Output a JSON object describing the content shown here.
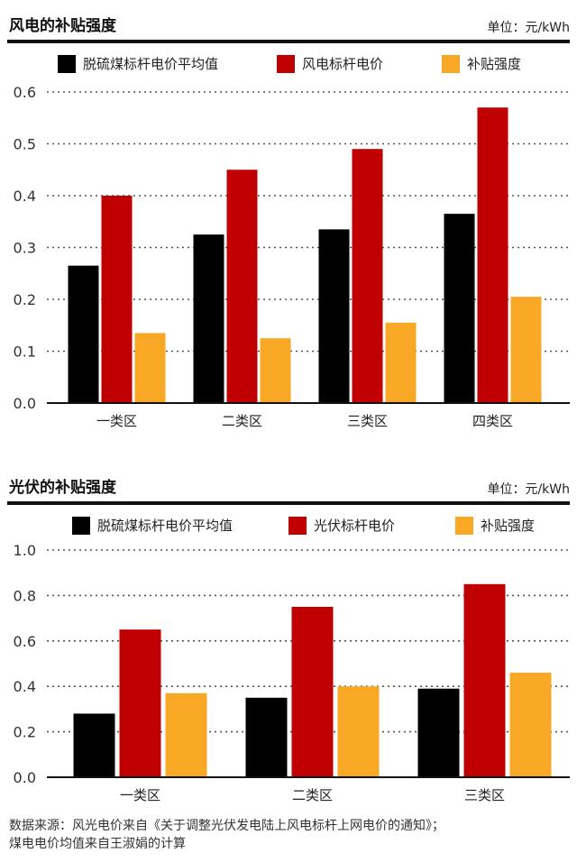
{
  "chart_data": [
    {
      "type": "bar",
      "title": "风电的补贴强度",
      "unit": "单位：元/kWh",
      "categories": [
        "一类区",
        "二类区",
        "三类区",
        "四类区"
      ],
      "series": [
        {
          "name": "脱硫煤标杆电价平均值",
          "values": [
            0.265,
            0.325,
            0.335,
            0.365
          ],
          "color": "#000000"
        },
        {
          "name": "风电标杆电价",
          "values": [
            0.4,
            0.45,
            0.49,
            0.57
          ],
          "color": "#c00000"
        },
        {
          "name": "补贴强度",
          "values": [
            0.135,
            0.125,
            0.155,
            0.205
          ],
          "color": "#f9a825"
        }
      ],
      "ylim": [
        0,
        0.6
      ],
      "yticks": [
        "0.0",
        "0.1",
        "0.2",
        "0.3",
        "0.4",
        "0.5",
        "0.6"
      ],
      "grid": true,
      "legend_position": "top"
    },
    {
      "type": "bar",
      "title": "光伏的补贴强度",
      "unit": "单位：元/kWh",
      "categories": [
        "一类区",
        "二类区",
        "三类区"
      ],
      "series": [
        {
          "name": "脱硫煤标杆电价平均值",
          "values": [
            0.28,
            0.35,
            0.39
          ],
          "color": "#000000"
        },
        {
          "name": "光伏标杆电价",
          "values": [
            0.65,
            0.75,
            0.85
          ],
          "color": "#c00000"
        },
        {
          "name": "补贴强度",
          "values": [
            0.37,
            0.4,
            0.46
          ],
          "color": "#f9a825"
        }
      ],
      "ylim": [
        0,
        1.0
      ],
      "yticks": [
        "0.0",
        "0.2",
        "0.4",
        "0.6",
        "0.8",
        "1.0"
      ],
      "grid": true,
      "legend_position": "top"
    }
  ],
  "footnote": {
    "line1": "数据来源：风光电价来自《关于调整光伏发电陆上风电标杆上网电价的通知》；",
    "line2": "煤电电价均值来自王淑娟的计算"
  }
}
